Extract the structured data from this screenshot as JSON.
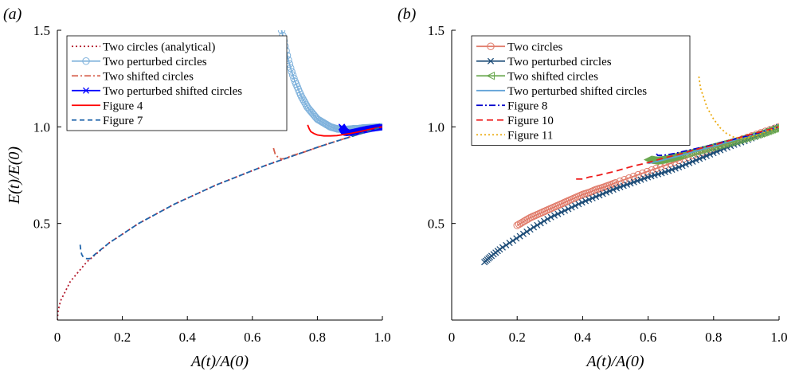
{
  "chart_data": [
    {
      "type": "line",
      "panel_label": "(a)",
      "xlabel": "A(t)/A(0)",
      "ylabel": "E(t)/E(0)",
      "xlim": [
        0,
        1
      ],
      "ylim": [
        0,
        1.5
      ],
      "xticks": [
        0,
        0.2,
        0.4,
        0.6,
        0.8,
        1.0
      ],
      "xtick_labels": [
        "0",
        "0.2",
        "0.4",
        "0.6",
        "0.8",
        "1.0"
      ],
      "yticks": [
        0.5,
        1.0,
        1.5
      ],
      "ytick_labels": [
        "0.5",
        "1.0",
        "1.5"
      ],
      "grid": false,
      "legend_position": "top-left",
      "series": [
        {
          "name": "Two circles (analytical)",
          "color": "#b2182b",
          "dash": "2,3",
          "marker": "none",
          "x": [
            0.0,
            0.0025,
            0.01,
            0.04,
            0.09,
            0.16,
            0.25,
            0.36,
            0.49,
            0.64,
            0.81,
            1.0
          ],
          "y": [
            0.0,
            0.05,
            0.1,
            0.2,
            0.3,
            0.4,
            0.5,
            0.6,
            0.7,
            0.8,
            0.9,
            1.0
          ]
        },
        {
          "name": "Two perturbed circles",
          "color": "#7fb2dc",
          "dash": "",
          "marker": "circle",
          "x": [
            0.69,
            0.7,
            0.71,
            0.72,
            0.73,
            0.74,
            0.75,
            0.76,
            0.77,
            0.78,
            0.79,
            0.8,
            0.81,
            0.82,
            0.83,
            0.84,
            0.85,
            0.86,
            0.87,
            0.88,
            0.89,
            0.9,
            0.91,
            0.92,
            0.93,
            0.94,
            0.95,
            0.96,
            0.97,
            0.98,
            0.99,
            1.0
          ],
          "y": [
            1.5,
            1.42,
            1.35,
            1.29,
            1.24,
            1.2,
            1.16,
            1.13,
            1.1,
            1.08,
            1.06,
            1.04,
            1.03,
            1.02,
            1.01,
            1.0,
            0.995,
            0.99,
            0.988,
            0.987,
            0.987,
            0.988,
            0.99,
            0.99,
            0.992,
            0.994,
            0.995,
            0.996,
            0.997,
            0.998,
            0.999,
            1.0
          ]
        },
        {
          "name": "Two shifted circles",
          "color": "#d6604d",
          "dash": "8,3,2,3",
          "marker": "none",
          "x": [
            0.665,
            0.67,
            0.68,
            0.69,
            0.7,
            0.72,
            0.76,
            0.8,
            0.85,
            0.9,
            0.95,
            1.0
          ],
          "y": [
            0.89,
            0.86,
            0.84,
            0.834,
            0.836,
            0.85,
            0.87,
            0.894,
            0.922,
            0.948,
            0.974,
            1.0
          ]
        },
        {
          "name": "Two perturbed shifted circles",
          "color": "#0000ff",
          "dash": "",
          "marker": "x",
          "x": [
            0.875,
            0.878,
            0.88,
            0.882,
            0.885,
            0.89,
            0.9,
            0.92,
            0.94,
            0.96,
            0.98,
            1.0
          ],
          "y": [
            1.0,
            0.99,
            0.985,
            0.98,
            0.975,
            0.97,
            0.968,
            0.975,
            0.983,
            0.99,
            0.995,
            1.0
          ]
        },
        {
          "name": "Figure 4",
          "color": "#ff0000",
          "dash": "",
          "marker": "none",
          "x": [
            0.77,
            0.775,
            0.78,
            0.79,
            0.8,
            0.82,
            0.84,
            0.86,
            0.88,
            0.9,
            0.93,
            0.96,
            1.0
          ],
          "y": [
            1.01,
            0.99,
            0.975,
            0.965,
            0.958,
            0.953,
            0.953,
            0.955,
            0.96,
            0.965,
            0.975,
            0.987,
            1.0
          ]
        },
        {
          "name": "Figure 7",
          "color": "#2166ac",
          "dash": "6,4",
          "marker": "none",
          "x": [
            0.07,
            0.072,
            0.075,
            0.08,
            0.09,
            0.1,
            0.12,
            0.16,
            0.25,
            0.36,
            0.49,
            0.64,
            0.81,
            1.0
          ],
          "y": [
            0.39,
            0.36,
            0.34,
            0.325,
            0.318,
            0.318,
            0.346,
            0.4,
            0.5,
            0.6,
            0.7,
            0.8,
            0.9,
            1.0
          ]
        }
      ]
    },
    {
      "type": "line",
      "panel_label": "(b)",
      "xlabel": "A(t)/A(0)",
      "ylabel": "",
      "xlim": [
        0,
        1
      ],
      "ylim": [
        0,
        1.5
      ],
      "xticks": [
        0,
        0.2,
        0.4,
        0.6,
        0.8,
        1.0
      ],
      "xtick_labels": [
        "0",
        "0.2",
        "0.4",
        "0.6",
        "0.8",
        "1.0"
      ],
      "yticks": [
        0.5,
        1.0,
        1.5
      ],
      "ytick_labels": [
        "0.5",
        "1.0",
        "1.5"
      ],
      "grid": false,
      "legend_position": "top-left",
      "series": [
        {
          "name": "Two circles",
          "color": "#e07b6a",
          "dash": "",
          "marker": "circle",
          "x": [
            0.2,
            0.22,
            0.24,
            0.26,
            0.28,
            0.3,
            0.32,
            0.34,
            0.36,
            0.38,
            0.4,
            0.42,
            0.44,
            0.46,
            0.48,
            0.5,
            0.55,
            0.6,
            0.65,
            0.7,
            0.75,
            0.8,
            0.85,
            0.9,
            0.95,
            1.0
          ],
          "y": [
            0.49,
            0.51,
            0.53,
            0.545,
            0.56,
            0.575,
            0.59,
            0.605,
            0.62,
            0.635,
            0.65,
            0.66,
            0.675,
            0.685,
            0.697,
            0.71,
            0.74,
            0.77,
            0.8,
            0.83,
            0.86,
            0.888,
            0.915,
            0.944,
            0.972,
            1.0
          ]
        },
        {
          "name": "Two perturbed circles",
          "color": "#1f4e79",
          "dash": "",
          "marker": "x",
          "x": [
            0.1,
            0.12,
            0.15,
            0.2,
            0.25,
            0.3,
            0.35,
            0.4,
            0.45,
            0.5,
            0.55,
            0.6,
            0.65,
            0.7,
            0.75,
            0.8,
            0.85,
            0.9,
            0.95,
            1.0
          ],
          "y": [
            0.3,
            0.33,
            0.37,
            0.425,
            0.48,
            0.53,
            0.57,
            0.61,
            0.645,
            0.68,
            0.71,
            0.74,
            0.765,
            0.795,
            0.83,
            0.865,
            0.9,
            0.93,
            0.965,
            1.0
          ]
        },
        {
          "name": "Two shifted circles",
          "color": "#6aa84f",
          "dash": "",
          "marker": "triangle-left",
          "x": [
            0.6,
            0.62,
            0.64,
            0.66,
            0.68,
            0.7,
            0.74,
            0.78,
            0.82,
            0.86,
            0.9,
            0.94,
            0.97,
            1.0
          ],
          "y": [
            0.83,
            0.825,
            0.83,
            0.838,
            0.846,
            0.855,
            0.872,
            0.89,
            0.908,
            0.925,
            0.944,
            0.964,
            0.982,
            1.0
          ]
        },
        {
          "name": "Two perturbed shifted circles",
          "color": "#5ea0d6",
          "dash": "",
          "marker": "none",
          "x": [
            0.6,
            0.65,
            0.7,
            0.75,
            0.8,
            0.85,
            0.9,
            0.95,
            1.0
          ],
          "y": [
            0.81,
            0.83,
            0.852,
            0.876,
            0.9,
            0.925,
            0.95,
            0.975,
            1.0
          ]
        },
        {
          "name": "Figure 8",
          "color": "#0000cc",
          "dash": "8,3,2,3",
          "marker": "none",
          "x": [
            0.625,
            0.63,
            0.64,
            0.66,
            0.68,
            0.7,
            0.74,
            0.78,
            0.82,
            0.86,
            0.9,
            0.94,
            0.97,
            1.0
          ],
          "y": [
            0.86,
            0.852,
            0.852,
            0.856,
            0.862,
            0.87,
            0.885,
            0.9,
            0.918,
            0.935,
            0.952,
            0.97,
            0.985,
            1.0
          ]
        },
        {
          "name": "Figure 10",
          "color": "#ee1c1c",
          "dash": "8,5",
          "marker": "none",
          "x": [
            0.38,
            0.4,
            0.42,
            0.45,
            0.5,
            0.55,
            0.6,
            0.65,
            0.7,
            0.75,
            0.8,
            0.85,
            0.9,
            0.95,
            1.0
          ],
          "y": [
            0.73,
            0.73,
            0.74,
            0.75,
            0.77,
            0.795,
            0.815,
            0.84,
            0.86,
            0.885,
            0.905,
            0.93,
            0.955,
            0.978,
            1.0
          ]
        },
        {
          "name": "Figure 11",
          "color": "#ecac14",
          "dash": "2,3",
          "marker": "none",
          "x": [
            0.755,
            0.76,
            0.77,
            0.78,
            0.8,
            0.82,
            0.84,
            0.86,
            0.88,
            0.9,
            0.93,
            0.96,
            1.0
          ],
          "y": [
            1.26,
            1.2,
            1.15,
            1.1,
            1.04,
            0.995,
            0.965,
            0.948,
            0.94,
            0.943,
            0.955,
            0.975,
            1.0
          ]
        }
      ]
    }
  ]
}
